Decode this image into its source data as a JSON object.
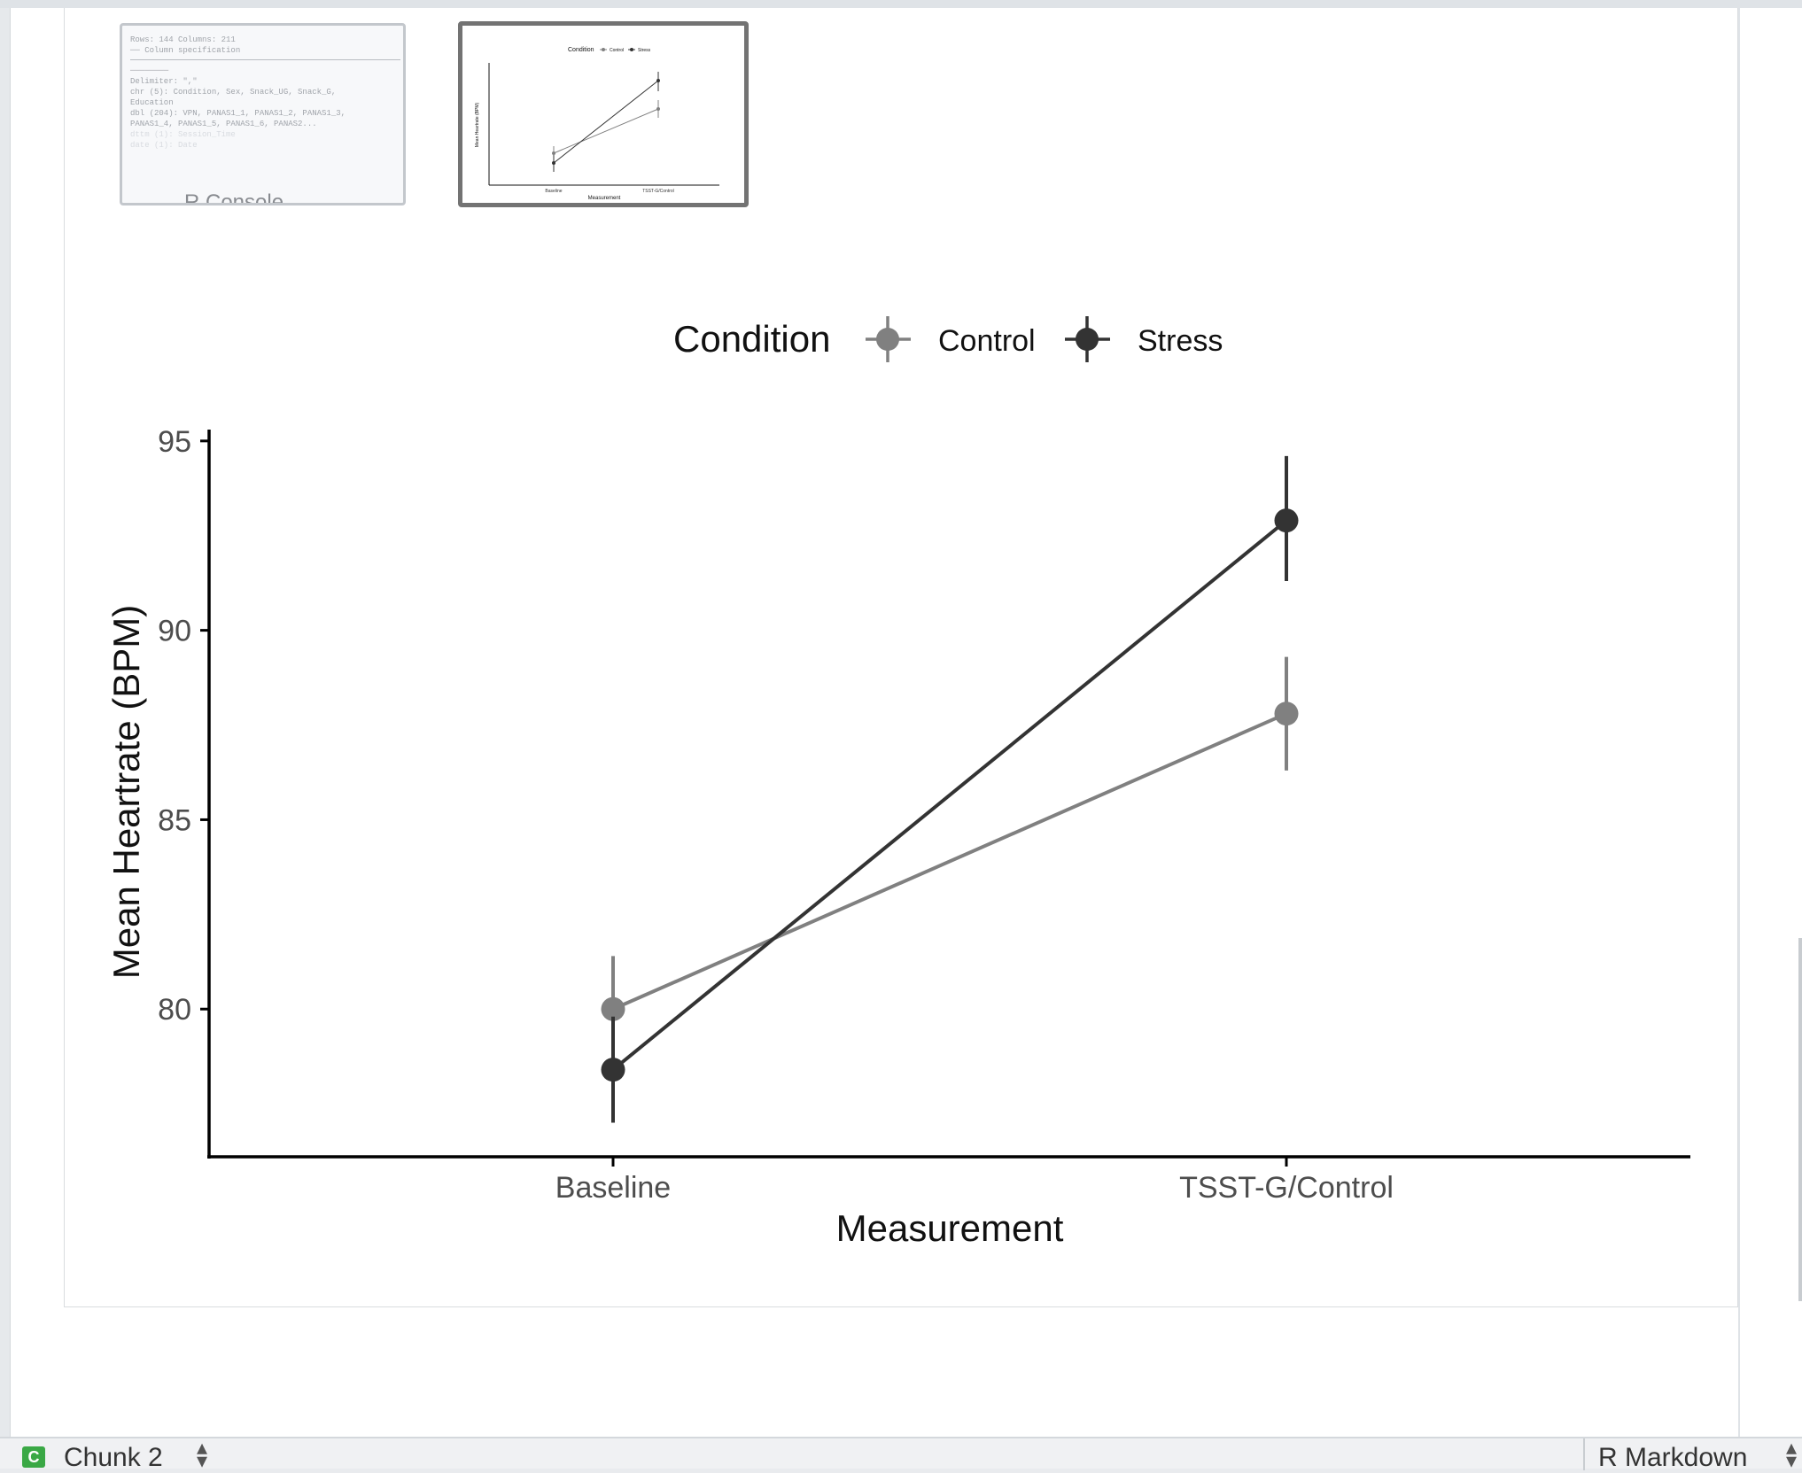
{
  "thumbnails": {
    "console": {
      "lines": [
        "Rows: 144 Columns: 211",
        "── Column specification",
        "────────",
        "Delimiter: \",\"",
        "chr   (5): Condition, Sex, Snack_UG, Snack_G,",
        "Education",
        "dbl (204): VPN, PANAS1_1, PANAS1_2, PANAS1_3,",
        "PANAS1_4, PANAS1_5, PANAS1_6, PANAS2...",
        "dttm   (1): Session_Time",
        "date   (1): Date"
      ],
      "partial_label": "R Console"
    },
    "plot": {
      "legend_title": "Condition",
      "legend_items": [
        "Control",
        "Stress"
      ],
      "xlabel": "Measurement",
      "ylabel": "Mean Heartrate (BPM)",
      "categories": [
        "Baseline",
        "TSST-G/Control"
      ]
    }
  },
  "chart_data": {
    "type": "line",
    "title": "",
    "xlabel": "Measurement",
    "ylabel": "Mean Heartrate (BPM)",
    "categories": [
      "Baseline",
      "TSST-G/Control"
    ],
    "ylim": [
      76.1,
      95.3
    ],
    "yticks": [
      80,
      85,
      90,
      95
    ],
    "legend_title": "Condition",
    "legend_position": "top",
    "grid": false,
    "series": [
      {
        "name": "Control",
        "color": "#808080",
        "values": [
          80.0,
          87.8
        ],
        "error_low": [
          78.6,
          86.3
        ],
        "error_high": [
          81.4,
          89.3
        ]
      },
      {
        "name": "Stress",
        "color": "#333333",
        "values": [
          78.4,
          92.9
        ],
        "error_low": [
          77.0,
          91.3
        ],
        "error_high": [
          79.8,
          94.6
        ]
      }
    ]
  },
  "status_bar": {
    "chunk_badge": "C",
    "chunk_name": "Chunk 2",
    "mode": "R Markdown"
  }
}
